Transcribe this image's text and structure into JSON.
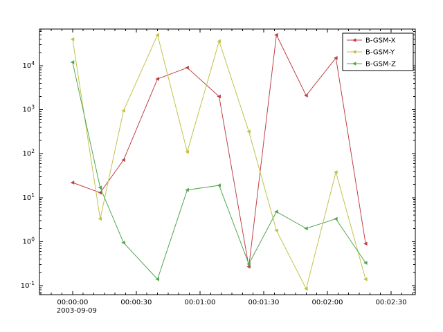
{
  "figure": {
    "background": "#ffffff",
    "frame_color": "#000000",
    "text_color": "#000000"
  },
  "chart_data": {
    "type": "line",
    "title": "",
    "xlabel": "",
    "ylabel": "",
    "x_seconds": [
      0,
      13,
      24,
      40,
      54,
      69,
      83,
      96,
      110,
      124,
      138
    ],
    "series": [
      {
        "name": "B-GSM-X",
        "color": "#bf4045",
        "values": [
          22,
          13,
          72,
          5000,
          9000,
          2000,
          0.27,
          50000,
          2100,
          15000,
          0.9
        ]
      },
      {
        "name": "B-GSM-Y",
        "color": "#c2c249",
        "values": [
          40000,
          3.3,
          950,
          50000,
          110,
          36000,
          320,
          1.8,
          0.085,
          38,
          0.14
        ]
      },
      {
        "name": "B-GSM-Z",
        "color": "#4fa74f",
        "values": [
          12000,
          17,
          0.95,
          0.14,
          15,
          19,
          0.31,
          4.8,
          2.0,
          3.3,
          0.33
        ]
      }
    ],
    "x_axis": {
      "tick_seconds": [
        0,
        30,
        60,
        90,
        120,
        150
      ],
      "tick_labels": [
        "00:00:00",
        "00:00:30",
        "00:01:00",
        "00:01:30",
        "00:02:00",
        "00:02:30"
      ],
      "first_tick_date": "2003-09-09",
      "minor_step_seconds": 5,
      "lim_seconds": [
        -15.6,
        161.4
      ]
    },
    "y_axis": {
      "scale": "log",
      "tick_exponents": [
        -1,
        0,
        1,
        2,
        3,
        4
      ],
      "lim_exponents": [
        -1.204,
        4.833
      ]
    },
    "legend": {
      "position": "top-right",
      "entries": [
        "B-GSM-X",
        "B-GSM-Y",
        "B-GSM-Z"
      ]
    }
  }
}
